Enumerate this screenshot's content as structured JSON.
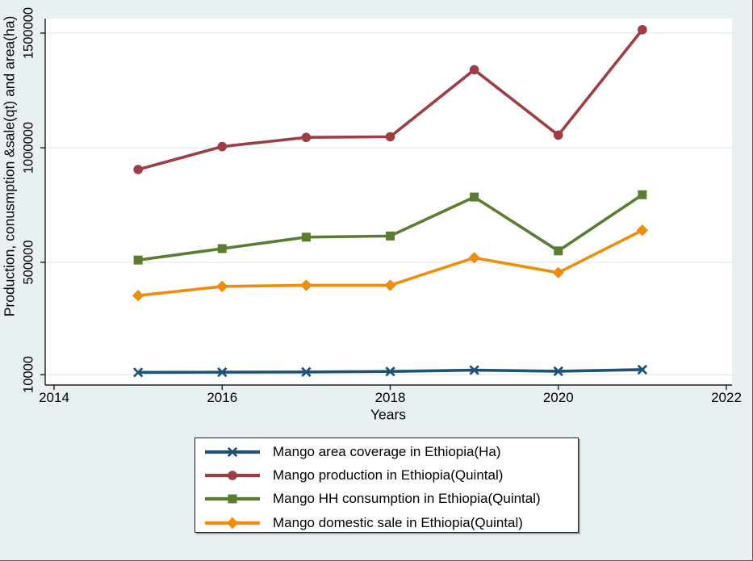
{
  "colors": {
    "figure_bg": "#e9f0f2",
    "plot_bg": "#ffffff",
    "gridline": "#e2ebed",
    "axis": "#1e1e1e",
    "text": "#000000",
    "legend_border": "#1a1a1a"
  },
  "chart_data": {
    "type": "line",
    "title": "",
    "xlabel": "Years",
    "ylabel": "Production, conusmption &sale(qt) and area(ha)",
    "x": [
      2015,
      2016,
      2017,
      2018,
      2019,
      2020,
      2021
    ],
    "x_ticks": [
      2014,
      2016,
      2018,
      2020,
      2022
    ],
    "y_ticks": [
      10000,
      500000,
      1000000,
      1500000
    ],
    "xlim": [
      2014,
      2022
    ],
    "ylim": [
      10000,
      1500000
    ],
    "grid": true,
    "legend_position": "bottom-center",
    "series": [
      {
        "name": "area-coverage",
        "label": "Mango area coverage in Ethiopia(Ha)",
        "color": "#1f5173",
        "marker": "x",
        "values": [
          20000,
          21000,
          22000,
          24000,
          30000,
          25000,
          32000
        ]
      },
      {
        "name": "production",
        "label": "Mango production in Ethiopia(Quintal)",
        "color": "#9d3d45",
        "marker": "circle",
        "values": [
          905000,
          1005000,
          1045000,
          1048000,
          1340000,
          1055000,
          1515000
        ]
      },
      {
        "name": "hh-consumption",
        "label": "Mango HH consumption in Ethiopia(Quintal)",
        "color": "#5b7c31",
        "marker": "square",
        "values": [
          510000,
          560000,
          610000,
          615000,
          785000,
          550000,
          795000
        ]
      },
      {
        "name": "domestic-sale",
        "label": "Mango domestic sale in Ethiopia(Quintal)",
        "color": "#ef8c0c",
        "marker": "diamond",
        "values": [
          355000,
          395000,
          400000,
          400000,
          520000,
          455000,
          640000
        ]
      }
    ]
  }
}
